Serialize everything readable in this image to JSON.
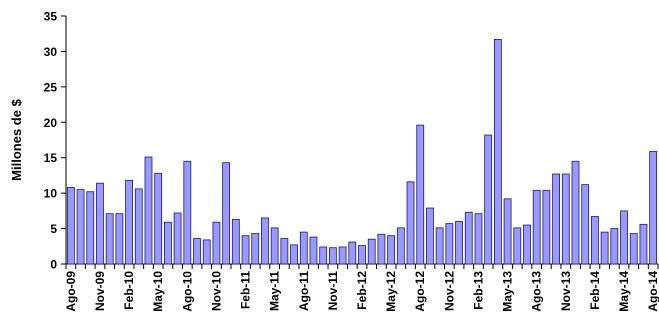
{
  "chart_data": {
    "type": "bar",
    "ylabel": "Millones de $",
    "ylim": [
      0,
      35
    ],
    "yticks": [
      0,
      5,
      10,
      15,
      20,
      25,
      30,
      35
    ],
    "grid": false,
    "bar_color": "#9999FF",
    "bar_stroke": "#1A1A6E",
    "categories": [
      "Ago-09",
      "Sep-09",
      "Oct-09",
      "Nov-09",
      "Dic-09",
      "Ene-10",
      "Feb-10",
      "Mar-10",
      "Abr-10",
      "May-10",
      "Jun-10",
      "Jul-10",
      "Ago-10",
      "Sep-10",
      "Oct-10",
      "Nov-10",
      "Dic-10",
      "Ene-11",
      "Feb-11",
      "Mar-11",
      "Abr-11",
      "May-11",
      "Jun-11",
      "Jul-11",
      "Ago-11",
      "Sep-11",
      "Oct-11",
      "Nov-11",
      "Dic-11",
      "Ene-12",
      "Feb-12",
      "Mar-12",
      "Abr-12",
      "May-12",
      "Jun-12",
      "Jul-12",
      "Ago-12",
      "Sep-12",
      "Oct-12",
      "Nov-12",
      "Dic-12",
      "Ene-13",
      "Feb-13",
      "Mar-13",
      "Abr-13",
      "May-13",
      "Jun-13",
      "Jul-13",
      "Ago-13",
      "Sep-13",
      "Oct-13",
      "Nov-13",
      "Dic-13",
      "Ene-14",
      "Feb-14",
      "Mar-14",
      "Abr-14",
      "May-14",
      "Jun-14",
      "Jul-14",
      "Ago-14"
    ],
    "visible_tick_labels": [
      "Ago-09",
      "Nov-09",
      "Feb-10",
      "May-10",
      "Ago-10",
      "Nov-10",
      "Feb-11",
      "May-11",
      "Ago-11",
      "Nov-11",
      "Feb-12",
      "May-12",
      "Ago-12",
      "Nov-12",
      "Feb-13",
      "May-13",
      "Ago-13",
      "Nov-13",
      "Feb-14",
      "May-14",
      "Ago-14"
    ],
    "values": [
      10.8,
      10.5,
      10.2,
      11.4,
      7.1,
      7.1,
      11.8,
      10.6,
      15.1,
      12.8,
      5.9,
      7.2,
      14.5,
      3.6,
      3.4,
      5.9,
      14.3,
      6.3,
      4.0,
      4.3,
      6.5,
      5.1,
      3.6,
      2.7,
      4.5,
      3.8,
      2.4,
      2.3,
      2.4,
      3.1,
      2.6,
      3.5,
      4.2,
      4.0,
      5.1,
      11.6,
      19.6,
      7.9,
      5.1,
      5.7,
      6.0,
      7.3,
      7.1,
      18.2,
      31.7,
      9.2,
      5.1,
      5.5,
      10.4,
      10.4,
      12.7,
      12.7,
      14.5,
      11.2,
      6.7,
      4.5,
      5.0,
      7.5,
      4.3,
      5.6,
      15.9
    ]
  }
}
